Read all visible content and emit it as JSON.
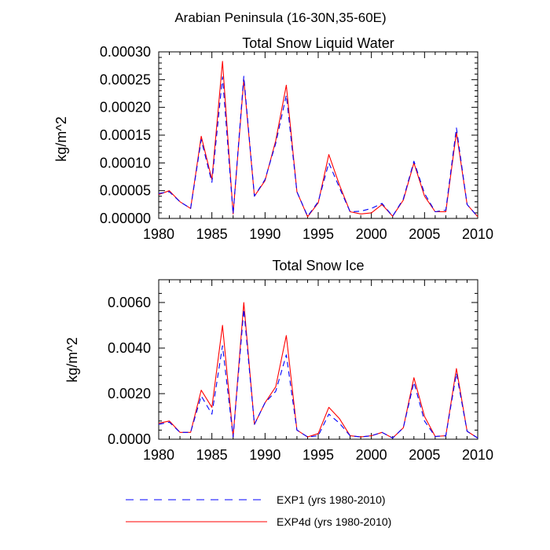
{
  "figure_title": "Arabian Peninsula (16-30N,35-60E)",
  "colors": {
    "exp1": "#0000ff",
    "exp4d": "#ff0000",
    "axis": "#000000"
  },
  "legend": [
    {
      "label": "EXP1 (yrs 1980-2010)",
      "style": "dashed",
      "color": "#0000ff"
    },
    {
      "label": "EXP4d (yrs 1980-2010)",
      "style": "solid",
      "color": "#ff0000"
    }
  ],
  "chart_data": [
    {
      "type": "line",
      "title": "Total Snow Liquid Water",
      "ylabel": "kg/m^2",
      "xlabel": "",
      "xlim": [
        1980,
        2010
      ],
      "ylim": [
        0,
        0.0003
      ],
      "xticks": [
        1980,
        1985,
        1990,
        1995,
        2000,
        2005,
        2010
      ],
      "xtick_labels": [
        "1980",
        "1985",
        "1990",
        "1995",
        "2000",
        "2005",
        "2010"
      ],
      "yticks": [
        0,
        5e-05,
        0.0001,
        0.00015,
        0.0002,
        0.00025,
        0.0003
      ],
      "ytick_labels": [
        "0.00000",
        "0.00005",
        "0.00010",
        "0.00015",
        "0.00020",
        "0.00025",
        "0.00030"
      ],
      "x": [
        1980,
        1981,
        1982,
        1983,
        1984,
        1985,
        1986,
        1987,
        1988,
        1989,
        1990,
        1991,
        1992,
        1993,
        1994,
        1995,
        1996,
        1997,
        1998,
        1999,
        2000,
        2001,
        2002,
        2003,
        2004,
        2005,
        2006,
        2007,
        2008,
        2009,
        2010
      ],
      "series": [
        {
          "name": "EXP1 (yrs 1980-2010)",
          "values": [
            4.5e-05,
            4.8e-05,
            3e-05,
            1.8e-05,
            0.000142,
            6.5e-05,
            0.000255,
            8e-06,
            0.000256,
            4e-05,
            7e-05,
            0.000135,
            0.000222,
            4.8e-05,
            4e-06,
            3e-05,
            0.0001,
            5.5e-05,
            1.2e-05,
            1.3e-05,
            1.8e-05,
            2.7e-05,
            4e-06,
            3.5e-05,
            0.000103,
            4.5e-05,
            1.2e-05,
            1.5e-05,
            0.000163,
            2.5e-05,
            3e-06
          ]
        },
        {
          "name": "EXP4d (yrs 1980-2010)",
          "values": [
            4.3e-05,
            5e-05,
            3e-05,
            1.8e-05,
            0.000148,
            7e-05,
            0.000283,
            8e-06,
            0.00025,
            4e-05,
            6.8e-05,
            0.00014,
            0.00024,
            4.8e-05,
            3e-06,
            2.8e-05,
            0.000115,
            6e-05,
            1.2e-05,
            8e-06,
            1e-05,
            2.5e-05,
            4e-06,
            3.3e-05,
            0.0001,
            4e-05,
            1.2e-05,
            1.2e-05,
            0.000155,
            2.5e-05,
            3e-06
          ]
        }
      ]
    },
    {
      "type": "line",
      "title": "Total Snow Ice",
      "ylabel": "kg/m^2",
      "xlabel": "",
      "xlim": [
        1980,
        2010
      ],
      "ylim": [
        0,
        0.007
      ],
      "xticks": [
        1980,
        1985,
        1990,
        1995,
        2000,
        2005,
        2010
      ],
      "xtick_labels": [
        "1980",
        "1985",
        "1990",
        "1995",
        "2000",
        "2005",
        "2010"
      ],
      "yticks": [
        0,
        0.002,
        0.004,
        0.006
      ],
      "ytick_labels": [
        "0.0000",
        "0.0020",
        "0.0040",
        "0.0060"
      ],
      "x": [
        1980,
        1981,
        1982,
        1983,
        1984,
        1985,
        1986,
        1987,
        1988,
        1989,
        1990,
        1991,
        1992,
        1993,
        1994,
        1995,
        1996,
        1997,
        1998,
        1999,
        2000,
        2001,
        2002,
        2003,
        2004,
        2005,
        2006,
        2007,
        2008,
        2009,
        2010
      ],
      "series": [
        {
          "name": "EXP1 (yrs 1980-2010)",
          "values": [
            0.00065,
            0.00075,
            0.0003,
            0.0003,
            0.0019,
            0.0011,
            0.0041,
            0.0001,
            0.0057,
            0.00065,
            0.0016,
            0.0021,
            0.0037,
            0.0004,
            0.0001,
            0.00015,
            0.0011,
            0.0007,
            0.00015,
            0.0001,
            0.00015,
            0.0003,
            5e-05,
            0.0005,
            0.0025,
            0.0008,
            0.00012,
            0.00015,
            0.0029,
            0.00035,
            5e-05
          ]
        },
        {
          "name": "EXP4d (yrs 1980-2010)",
          "values": [
            0.0007,
            0.0008,
            0.0003,
            0.0003,
            0.00215,
            0.0014,
            0.005,
            0.0001,
            0.006,
            0.00065,
            0.0016,
            0.0023,
            0.00455,
            0.0004,
            0.0001,
            0.00025,
            0.0014,
            0.0009,
            0.00015,
            0.0001,
            0.00015,
            0.0003,
            5e-05,
            0.0005,
            0.0027,
            0.001,
            0.00012,
            0.00015,
            0.0031,
            0.00035,
            5e-05
          ]
        }
      ]
    }
  ]
}
